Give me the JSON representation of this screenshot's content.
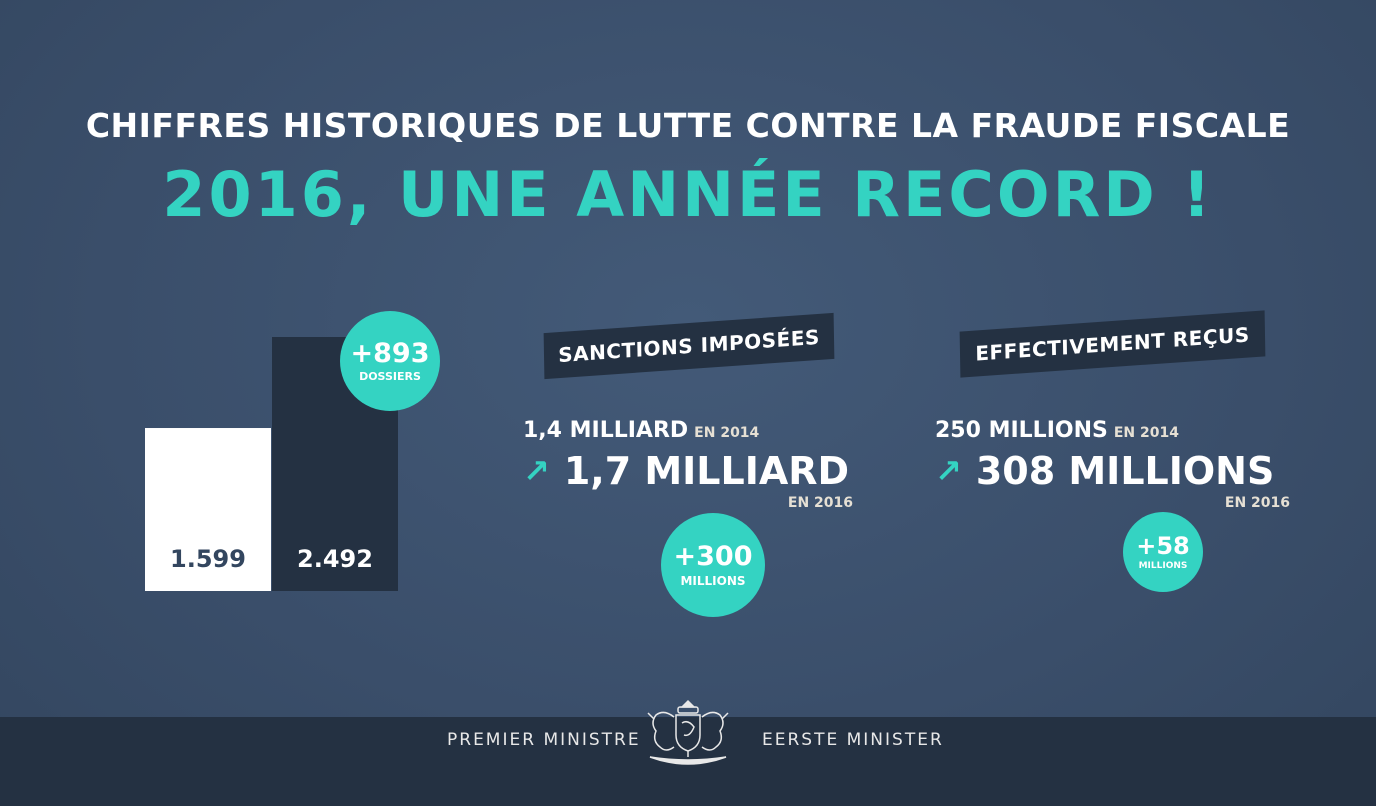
{
  "header": {
    "title": "CHIFFRES HISTORIQUES DE LUTTE CONTRE LA FRAUDE FISCALE",
    "subtitle": "2016, UNE ANNÉE RECORD !"
  },
  "colors": {
    "accent": "#34d3c2",
    "background": "#3b4f6b",
    "dark": "#243142",
    "bar_light": "#ffffff"
  },
  "chart_data": {
    "type": "bar",
    "categories": [
      "",
      ""
    ],
    "values": [
      1599,
      2492
    ],
    "value_labels": [
      "1.599",
      "2.492"
    ],
    "ylim": [
      0,
      2492
    ],
    "grid": false,
    "bar_colors": [
      "#ffffff",
      "#243142"
    ],
    "label_colors": [
      "#33465f",
      "#ffffff"
    ],
    "annotation": {
      "big": "+893",
      "small": "DOSSIERS"
    }
  },
  "sanctions": {
    "ribbon": "SANCTIONS IMPOSÉES",
    "prev_value": "1,4 MILLIARD",
    "prev_year": "EN 2014",
    "value": "1,7 MILLIARD",
    "year": "EN 2016",
    "badge_big": "+300",
    "badge_small": "MILLIONS"
  },
  "recus": {
    "ribbon": "EFFECTIVEMENT REÇUS",
    "prev_value": "250 MILLIONS",
    "prev_year": "EN 2014",
    "value": "308 MILLIONS",
    "year": "EN 2016",
    "badge_big": "+58",
    "badge_small": "MILLIONS"
  },
  "footer": {
    "left": "PREMIER MINISTRE",
    "right": "EERSTE MINISTER",
    "logo": "belgian-coat-of-arms"
  }
}
